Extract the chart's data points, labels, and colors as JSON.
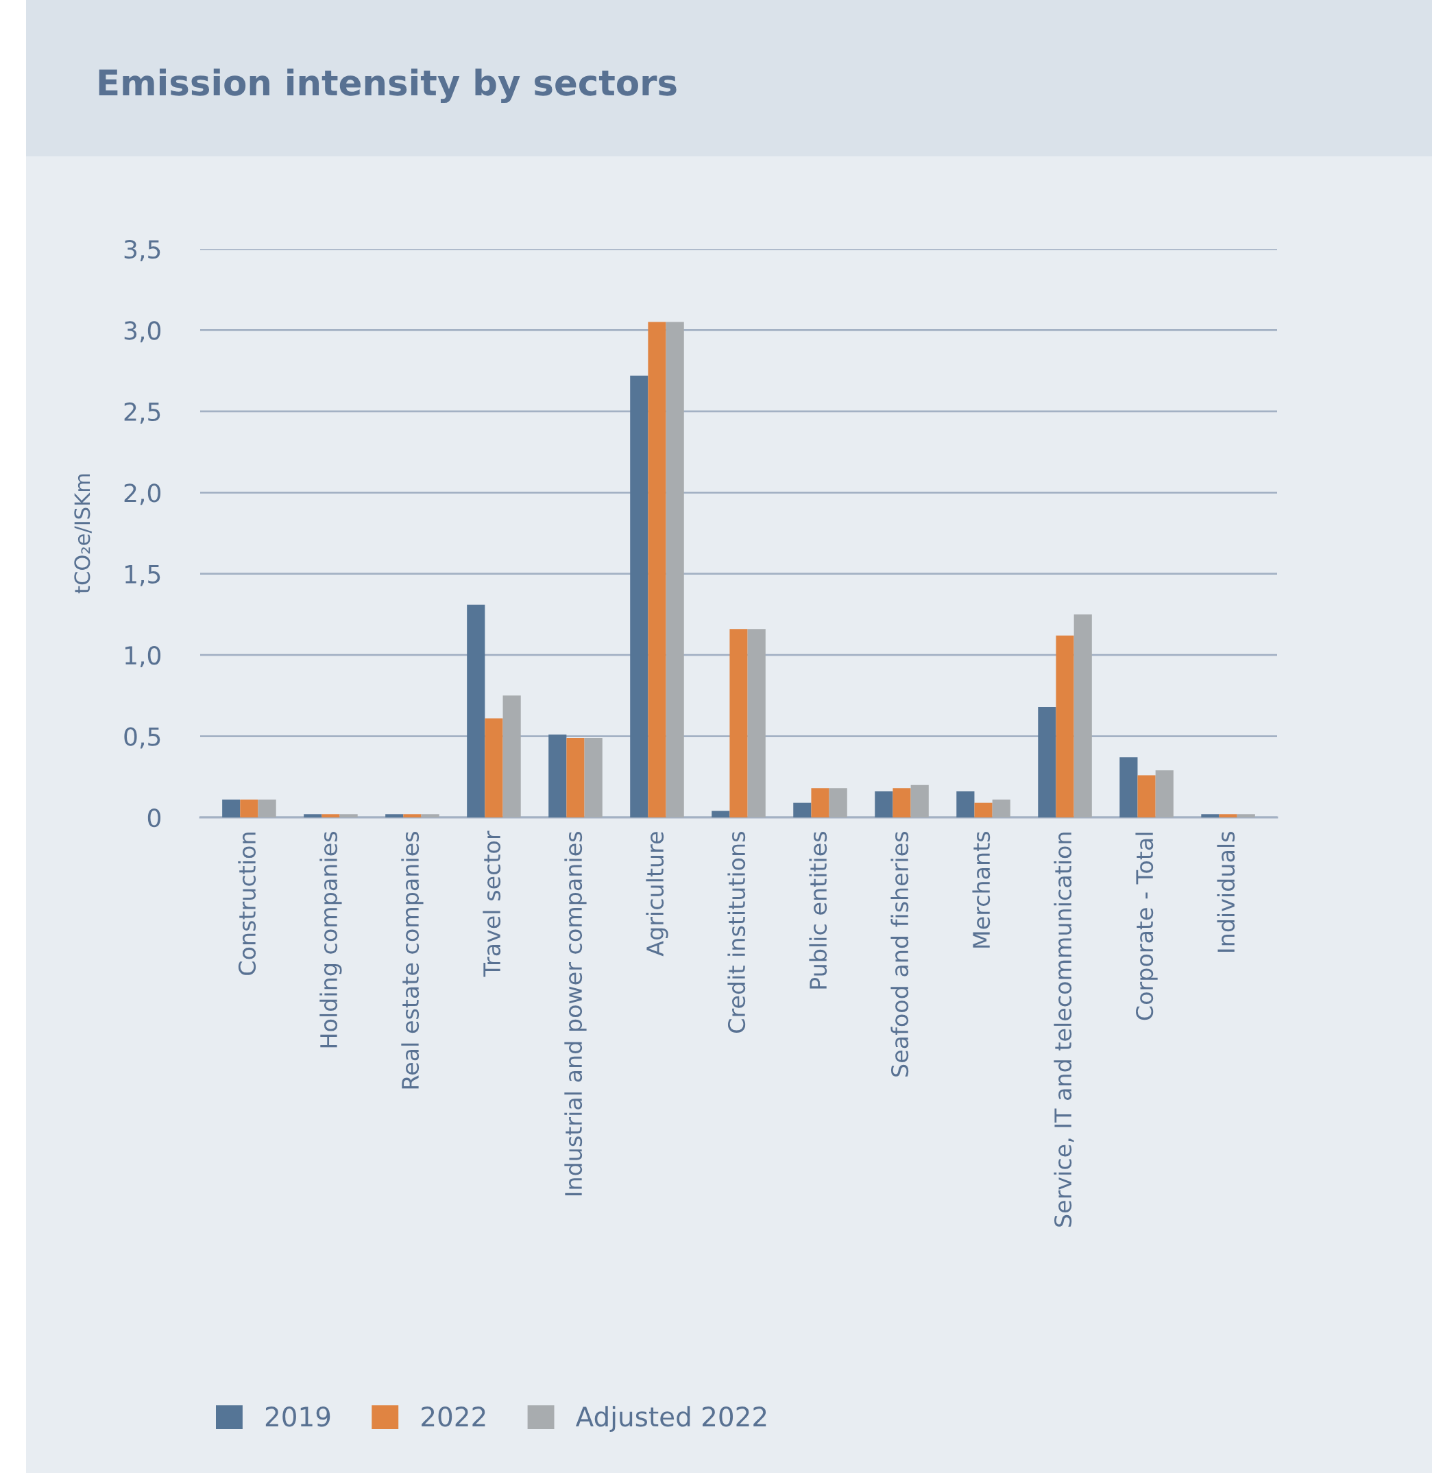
{
  "chart_data": {
    "type": "bar",
    "title": "Emission intensity by sectors",
    "ylabel": "tCO₂e/ISKm",
    "categories": [
      "Construction",
      "Holding companies",
      "Real estate companies",
      "Travel sector",
      "Industrial and power companies",
      "Agriculture",
      "Credit institutions",
      "Public entities",
      "Seafood and fisheries",
      "Merchants",
      "Service, IT and telecommunication",
      "Corporate - Total",
      "Individuals"
    ],
    "series": [
      {
        "name": "2019",
        "color": "#557596",
        "values": [
          0.11,
          0.02,
          0.02,
          1.31,
          0.51,
          2.72,
          0.04,
          0.09,
          0.16,
          0.16,
          0.68,
          0.37,
          0.02
        ]
      },
      {
        "name": "2022",
        "color": "#e08442",
        "values": [
          0.11,
          0.02,
          0.02,
          0.61,
          0.49,
          3.05,
          1.16,
          0.18,
          0.18,
          0.09,
          1.12,
          0.26,
          0.02
        ]
      },
      {
        "name": "Adjusted 2022",
        "color": "#a8acaf",
        "values": [
          0.11,
          0.02,
          0.02,
          0.75,
          0.49,
          3.05,
          1.16,
          0.18,
          0.2,
          0.11,
          1.25,
          0.29,
          0.02
        ]
      }
    ],
    "ylim": [
      0,
      3.5
    ],
    "yticks": [
      0,
      {
        "value": 0.5,
        "label": "0,5"
      },
      {
        "value": 1.0,
        "label": "1,0"
      },
      {
        "value": 1.5,
        "label": "1,5"
      },
      {
        "value": 2.0,
        "label": "2,0"
      },
      {
        "value": 2.5,
        "label": "2,5"
      },
      {
        "value": 3.0,
        "label": "3,0"
      },
      {
        "value": 3.5,
        "label": "3,5"
      }
    ],
    "grid": "y",
    "legend": "bottom left"
  }
}
